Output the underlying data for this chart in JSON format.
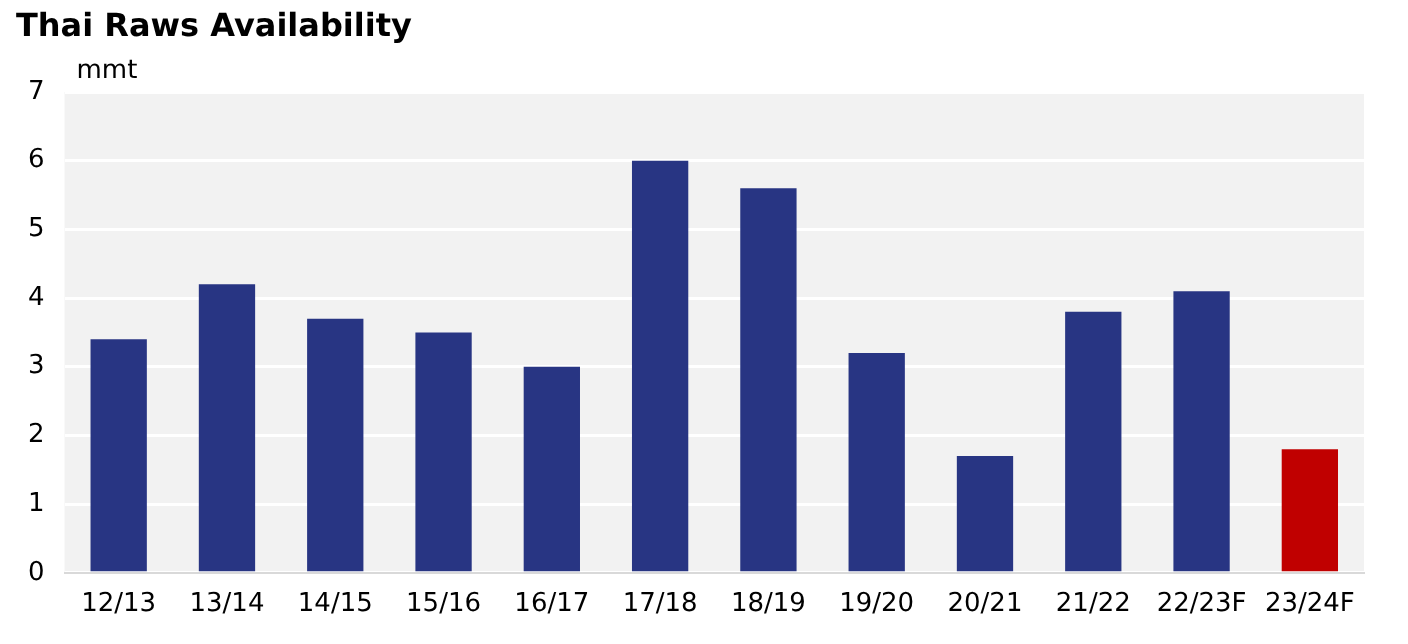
{
  "chart_data": {
    "type": "bar",
    "title": "Thai Raws Availability",
    "ylabel": "mmt",
    "categories": [
      "12/13",
      "13/14",
      "14/15",
      "15/16",
      "16/17",
      "17/18",
      "18/19",
      "19/20",
      "20/21",
      "21/22",
      "22/23F",
      "23/24F"
    ],
    "values": [
      3.4,
      4.2,
      3.7,
      3.5,
      3.0,
      6.0,
      5.6,
      3.2,
      1.7,
      3.8,
      4.1,
      1.8
    ],
    "colors": [
      "#283583",
      "#283583",
      "#283583",
      "#283583",
      "#283583",
      "#283583",
      "#283583",
      "#283583",
      "#283583",
      "#283583",
      "#283583",
      "#c00000"
    ],
    "ylim": [
      0,
      7
    ],
    "yticks": [
      0,
      1,
      2,
      3,
      4,
      5,
      6,
      7
    ],
    "grid": "y"
  }
}
